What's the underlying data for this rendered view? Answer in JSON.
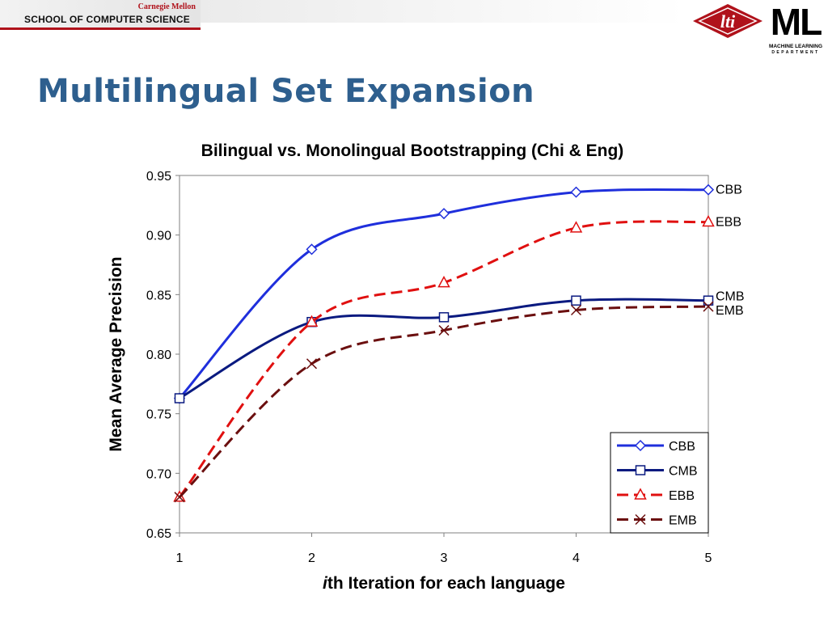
{
  "header": {
    "university": "Carnegie Mellon",
    "school": "SCHOOL OF COMPUTER SCIENCE",
    "lti_logo_text": "lti",
    "ml_logo_text": "ML",
    "ml_logo_sub1": "MACHINE LEARNING",
    "ml_logo_sub2": "DEPARTMENT"
  },
  "slide": {
    "title": "Multilingual Set Expansion"
  },
  "colors": {
    "title": "#2e5f8e",
    "cbb": "#1f2fdc",
    "cmb": "#0a1a80",
    "ebb": "#e01010",
    "emb": "#6b0f0f",
    "cmu_red": "#b0121b"
  },
  "chart_data": {
    "type": "line",
    "title": "Bilingual vs. Monolingual Bootstrapping (Chi & Eng)",
    "xlabel_italic": "i",
    "xlabel": "th Iteration for each language",
    "ylabel": "Mean Average Precision",
    "x": [
      1,
      2,
      3,
      4,
      5
    ],
    "ylim": [
      0.65,
      0.95
    ],
    "yticks": [
      0.65,
      0.7,
      0.75,
      0.8,
      0.85,
      0.9,
      0.95
    ],
    "ytick_labels": [
      "0.65",
      "0.70",
      "0.75",
      "0.80",
      "0.85",
      "0.90",
      "0.95"
    ],
    "xtick_labels": [
      "1",
      "2",
      "3",
      "4",
      "5"
    ],
    "grid": false,
    "legend_position": "bottom-right",
    "series": [
      {
        "name": "CBB",
        "values": [
          0.763,
          0.888,
          0.918,
          0.936,
          0.938
        ],
        "color": "#1f2fdc",
        "dash": "solid",
        "marker": "diamond"
      },
      {
        "name": "CMB",
        "values": [
          0.763,
          0.827,
          0.831,
          0.845,
          0.845
        ],
        "color": "#0a1a80",
        "dash": "solid",
        "marker": "square"
      },
      {
        "name": "EBB",
        "values": [
          0.68,
          0.827,
          0.86,
          0.906,
          0.911
        ],
        "color": "#e01010",
        "dash": "dashed",
        "marker": "triangle"
      },
      {
        "name": "EMB",
        "values": [
          0.68,
          0.792,
          0.82,
          0.837,
          0.84
        ],
        "color": "#6b0f0f",
        "dash": "dashed",
        "marker": "x"
      }
    ]
  }
}
